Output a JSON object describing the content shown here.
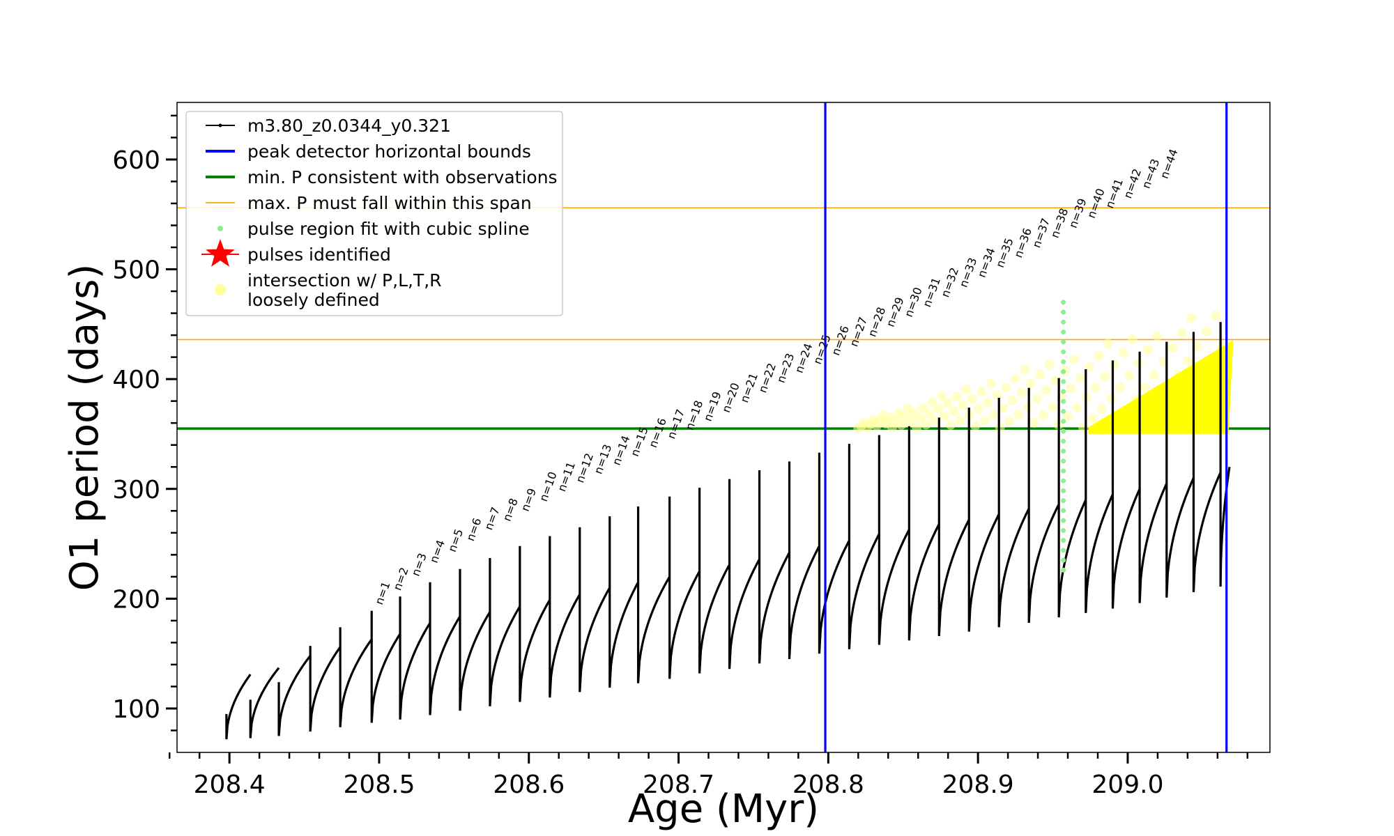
{
  "chart_data": {
    "type": "line",
    "xlabel": "Age (Myr)",
    "ylabel": "O1 period (days)",
    "xlim": [
      208.365,
      209.095
    ],
    "ylim": [
      60,
      652
    ],
    "xticks": [
      208.4,
      208.5,
      208.6,
      208.7,
      208.8,
      208.9,
      209.0
    ],
    "xtick_labels": [
      "208.4",
      "208.5",
      "208.6",
      "208.7",
      "208.8",
      "208.9",
      "209.0"
    ],
    "yticks": [
      100,
      200,
      300,
      400,
      500,
      600
    ],
    "ytick_labels": [
      "100",
      "200",
      "300",
      "400",
      "500",
      "600"
    ],
    "legend_placement": "upper-left",
    "legend": [
      {
        "label": "m3.80_z0.0344_y0.321",
        "color": "#000000",
        "style": "line-marker"
      },
      {
        "label": "peak detector horizontal bounds",
        "color": "#0000ff",
        "style": "line"
      },
      {
        "label": "min. P consistent with observations",
        "color": "#008000",
        "style": "line"
      },
      {
        "label": "max. P must fall within this span",
        "color": "#ffa500",
        "style": "thin-line"
      },
      {
        "label": "pulse region fit with cubic spline",
        "color": "#90ee90",
        "style": "dot"
      },
      {
        "label": "pulses identified",
        "color": "#ff0000",
        "style": "star"
      },
      {
        "label_lines": [
          "intersection w/ P,L,T,R",
          "loosely defined"
        ],
        "color": "#ffff99",
        "style": "circle"
      }
    ],
    "vertical_lines": [
      {
        "x": 208.798,
        "color": "#0000ff"
      },
      {
        "x": 209.066,
        "color": "#0000ff"
      }
    ],
    "horizontal_lines": [
      {
        "y": 355,
        "color": "#008000"
      },
      {
        "y": 436,
        "color": "#ffa500"
      },
      {
        "y": 556,
        "color": "#ffa500"
      }
    ],
    "series": [
      {
        "name": "m3.80_z0.0344_y0.321",
        "color": "#000000",
        "pulses": [
          {
            "x": 208.398,
            "min": 72,
            "peak": 95,
            "end": 131
          },
          {
            "x": 208.414,
            "min": 73,
            "peak": 108,
            "end": 137
          },
          {
            "x": 208.433,
            "min": 75,
            "peak": 124,
            "end": 148
          },
          {
            "x": 208.454,
            "min": 79,
            "peak": 157,
            "end": 156
          },
          {
            "x": 208.474,
            "min": 83,
            "peak": 174,
            "end": 163
          },
          {
            "x": 208.495,
            "min": 87,
            "peak": 189,
            "end": 168
          },
          {
            "x": 208.514,
            "min": 90,
            "peak": 202,
            "end": 178
          },
          {
            "x": 208.534,
            "min": 94,
            "peak": 215,
            "end": 184
          },
          {
            "x": 208.554,
            "min": 98,
            "peak": 227,
            "end": 188
          },
          {
            "x": 208.574,
            "min": 102,
            "peak": 237,
            "end": 193
          },
          {
            "x": 208.594,
            "min": 106,
            "peak": 248,
            "end": 199
          },
          {
            "x": 208.614,
            "min": 110,
            "peak": 257,
            "end": 204
          },
          {
            "x": 208.634,
            "min": 115,
            "peak": 265,
            "end": 210
          },
          {
            "x": 208.654,
            "min": 119,
            "peak": 275,
            "end": 215
          },
          {
            "x": 208.673,
            "min": 123,
            "peak": 284,
            "end": 220
          },
          {
            "x": 208.694,
            "min": 127,
            "peak": 293,
            "end": 225
          },
          {
            "x": 208.714,
            "min": 132,
            "peak": 301,
            "end": 231
          },
          {
            "x": 208.734,
            "min": 136,
            "peak": 309,
            "end": 236
          },
          {
            "x": 208.754,
            "min": 141,
            "peak": 317,
            "end": 242
          },
          {
            "x": 208.774,
            "min": 145,
            "peak": 325,
            "end": 248
          },
          {
            "x": 208.794,
            "min": 150,
            "peak": 333,
            "end": 253
          },
          {
            "x": 208.814,
            "min": 154,
            "peak": 341,
            "end": 259
          },
          {
            "x": 208.834,
            "min": 158,
            "peak": 349,
            "end": 263
          },
          {
            "x": 208.854,
            "min": 162,
            "peak": 357,
            "end": 268
          },
          {
            "x": 208.874,
            "min": 166,
            "peak": 365,
            "end": 272
          },
          {
            "x": 208.894,
            "min": 170,
            "peak": 374,
            "end": 277
          },
          {
            "x": 208.914,
            "min": 174,
            "peak": 383,
            "end": 282
          },
          {
            "x": 208.934,
            "min": 178,
            "peak": 392,
            "end": 286
          },
          {
            "x": 208.954,
            "min": 183,
            "peak": 401,
            "end": 290
          },
          {
            "x": 208.972,
            "min": 187,
            "peak": 409,
            "end": 295
          },
          {
            "x": 208.99,
            "min": 191,
            "peak": 417,
            "end": 300
          },
          {
            "x": 209.008,
            "min": 196,
            "peak": 425,
            "end": 305
          },
          {
            "x": 209.026,
            "min": 201,
            "peak": 434,
            "end": 310
          },
          {
            "x": 209.044,
            "min": 206,
            "peak": 443,
            "end": 315
          },
          {
            "x": 209.062,
            "min": 211,
            "peak": 452,
            "end": 320
          }
        ]
      }
    ],
    "pulse_labels": [
      {
        "text": "n=1",
        "x": 208.497,
        "y": 190
      },
      {
        "text": "n=2",
        "x": 208.517,
        "y": 203
      },
      {
        "text": "n=3",
        "x": 208.537,
        "y": 216
      },
      {
        "text": "n=4",
        "x": 208.557,
        "y": 228
      },
      {
        "text": "n=5",
        "x": 208.577,
        "y": 238
      },
      {
        "text": "n=6",
        "x": 208.597,
        "y": 248
      },
      {
        "text": "n=7",
        "x": 208.617,
        "y": 258
      },
      {
        "text": "n=8",
        "x": 208.637,
        "y": 266
      },
      {
        "text": "n=9",
        "x": 208.657,
        "y": 275
      },
      {
        "text": "n=10",
        "x": 208.677,
        "y": 284
      },
      {
        "text": "n=11",
        "x": 208.697,
        "y": 293
      },
      {
        "text": "n=12",
        "x": 208.717,
        "y": 301
      },
      {
        "text": "n=13",
        "x": 208.737,
        "y": 309
      },
      {
        "text": "n=14",
        "x": 208.757,
        "y": 317
      },
      {
        "text": "n=15",
        "x": 208.777,
        "y": 325
      },
      {
        "text": "n=16",
        "x": 208.797,
        "y": 333
      },
      {
        "text": "n=17",
        "x": 208.777,
        "y": 341
      },
      {
        "text": "n=18",
        "x": 208.797,
        "y": 349
      },
      {
        "text": "n=19",
        "x": 208.817,
        "y": 357
      },
      {
        "text": "n=20",
        "x": 208.837,
        "y": 365
      },
      {
        "text": "n=21",
        "x": 208.857,
        "y": 374
      },
      {
        "text": "n=22",
        "x": 208.877,
        "y": 383
      },
      {
        "text": "n=23",
        "x": 208.897,
        "y": 392
      },
      {
        "text": "n=24",
        "x": 208.917,
        "y": 401
      },
      {
        "text": "n=25",
        "x": 208.937,
        "y": 409
      },
      {
        "text": "n=26",
        "x": 208.957,
        "y": 417
      },
      {
        "text": "n=27",
        "x": 208.975,
        "y": 425
      },
      {
        "text": "n=28",
        "x": 208.993,
        "y": 434
      },
      {
        "text": "n=29",
        "x": 209.011,
        "y": 443
      },
      {
        "text": "n=30",
        "x": 209.029,
        "y": 452
      },
      {
        "text": "n=31",
        "x": 209.047,
        "y": 461
      },
      {
        "text": "n=32",
        "x": 209.065,
        "y": 470
      },
      {
        "text": "n=33",
        "x": 209.083,
        "y": 479
      },
      {
        "text": "n=34",
        "x": 209.101,
        "y": 488
      },
      {
        "text": "n=35",
        "x": 209.119,
        "y": 497
      },
      {
        "text": "n=36",
        "x": 209.137,
        "y": 506
      },
      {
        "text": "n=37",
        "x": 209.155,
        "y": 515
      },
      {
        "text": "n=38",
        "x": 209.173,
        "y": 524
      },
      {
        "text": "n=39",
        "x": 209.191,
        "y": 533
      },
      {
        "text": "n=40",
        "x": 209.209,
        "y": 542
      },
      {
        "text": "n=41",
        "x": 209.227,
        "y": 551
      },
      {
        "text": "n=42",
        "x": 209.245,
        "y": 560
      },
      {
        "text": "n=43",
        "x": 209.263,
        "y": 569
      },
      {
        "text": "n=44",
        "x": 209.281,
        "y": 578
      }
    ],
    "spline_fit": {
      "x": 208.957,
      "y_range": [
        226,
        470
      ],
      "color": "#90ee90"
    },
    "loose_intersection_region": {
      "x_range": [
        208.82,
        209.065
      ],
      "y_range": [
        355,
        470
      ],
      "color": "#ffff99"
    },
    "dense_intersection_region": {
      "x_range": [
        208.975,
        209.066
      ],
      "y_lower": 352,
      "y_upper": [
        355,
        432
      ],
      "color": "#ffff00"
    }
  }
}
